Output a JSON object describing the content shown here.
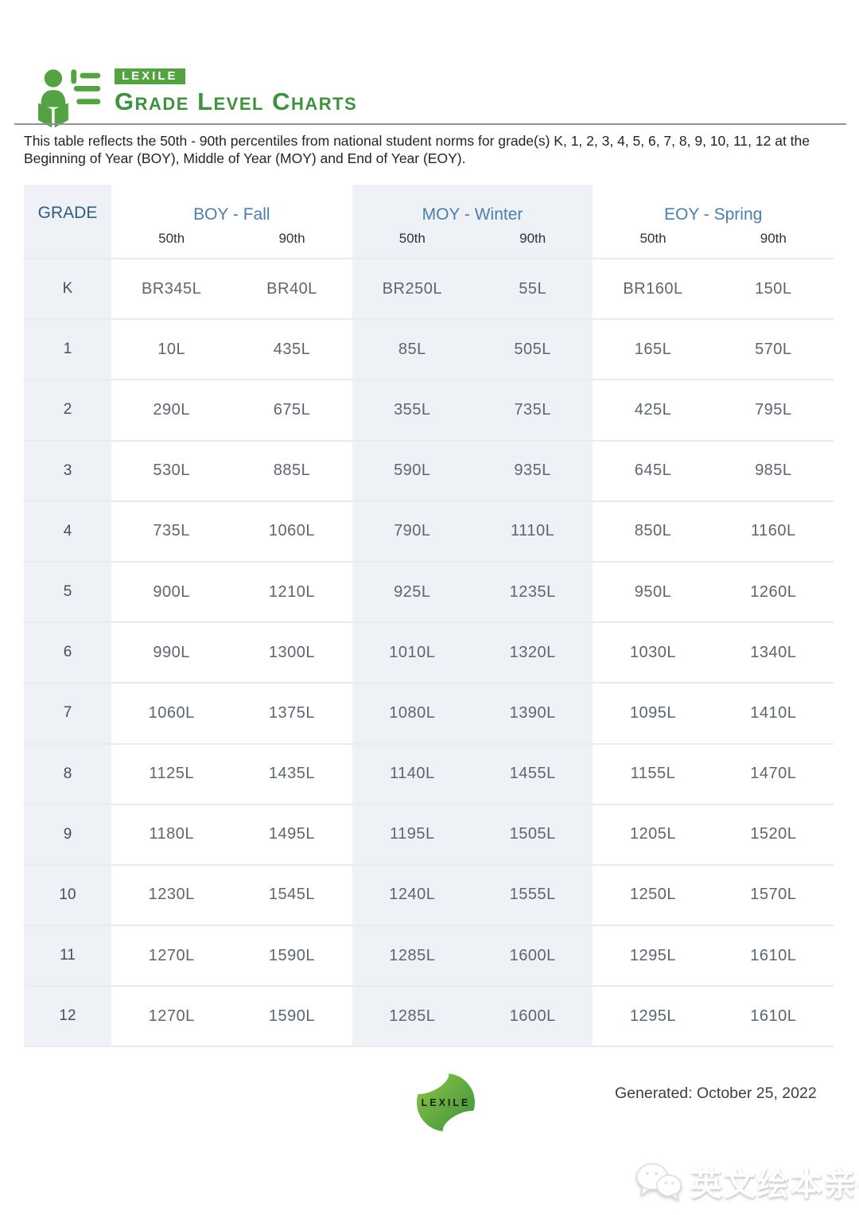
{
  "brand": {
    "badge": "LEXILE",
    "title": "Grade Level Charts"
  },
  "intro_text": "This table reflects the 50th - 90th percentiles from national student norms for grade(s) K, 1, 2, 3, 4, 5, 6, 7, 8, 9, 10, 11, 12 at the Beginning of Year (BOY), Middle of Year (MOY) and End of Year (EOY).",
  "table": {
    "grade_header": "GRADE",
    "groups": [
      {
        "label": "BOY - Fall"
      },
      {
        "label": "MOY - Winter"
      },
      {
        "label": "EOY - Spring"
      }
    ],
    "percentile_headers": [
      "50th",
      "90th",
      "50th",
      "90th",
      "50th",
      "90th"
    ],
    "rows": [
      {
        "grade": "K",
        "values": [
          "BR345L",
          "BR40L",
          "BR250L",
          "55L",
          "BR160L",
          "150L"
        ]
      },
      {
        "grade": "1",
        "values": [
          "10L",
          "435L",
          "85L",
          "505L",
          "165L",
          "570L"
        ]
      },
      {
        "grade": "2",
        "values": [
          "290L",
          "675L",
          "355L",
          "735L",
          "425L",
          "795L"
        ]
      },
      {
        "grade": "3",
        "values": [
          "530L",
          "885L",
          "590L",
          "935L",
          "645L",
          "985L"
        ]
      },
      {
        "grade": "4",
        "values": [
          "735L",
          "1060L",
          "790L",
          "1110L",
          "850L",
          "1160L"
        ]
      },
      {
        "grade": "5",
        "values": [
          "900L",
          "1210L",
          "925L",
          "1235L",
          "950L",
          "1260L"
        ]
      },
      {
        "grade": "6",
        "values": [
          "990L",
          "1300L",
          "1010L",
          "1320L",
          "1030L",
          "1340L"
        ]
      },
      {
        "grade": "7",
        "values": [
          "1060L",
          "1375L",
          "1080L",
          "1390L",
          "1095L",
          "1410L"
        ]
      },
      {
        "grade": "8",
        "values": [
          "1125L",
          "1435L",
          "1140L",
          "1455L",
          "1155L",
          "1470L"
        ]
      },
      {
        "grade": "9",
        "values": [
          "1180L",
          "1495L",
          "1195L",
          "1505L",
          "1205L",
          "1520L"
        ]
      },
      {
        "grade": "10",
        "values": [
          "1230L",
          "1545L",
          "1240L",
          "1555L",
          "1250L",
          "1570L"
        ]
      },
      {
        "grade": "11",
        "values": [
          "1270L",
          "1590L",
          "1285L",
          "1600L",
          "1295L",
          "1610L"
        ]
      },
      {
        "grade": "12",
        "values": [
          "1270L",
          "1590L",
          "1285L",
          "1600L",
          "1295L",
          "1610L"
        ]
      }
    ]
  },
  "footer": {
    "logo_label": "LEXILE",
    "generated": "Generated: October 25, 2022"
  },
  "watermark": {
    "text": "英文绘本亲子屋"
  },
  "colors": {
    "brand_green": "#54a342",
    "title_green": "#3f9140",
    "header_blue": "#4d7ea9",
    "grade_header_blue": "#2f5f80",
    "column_tint": "#eef1f6",
    "value_gray": "#5d6670"
  }
}
